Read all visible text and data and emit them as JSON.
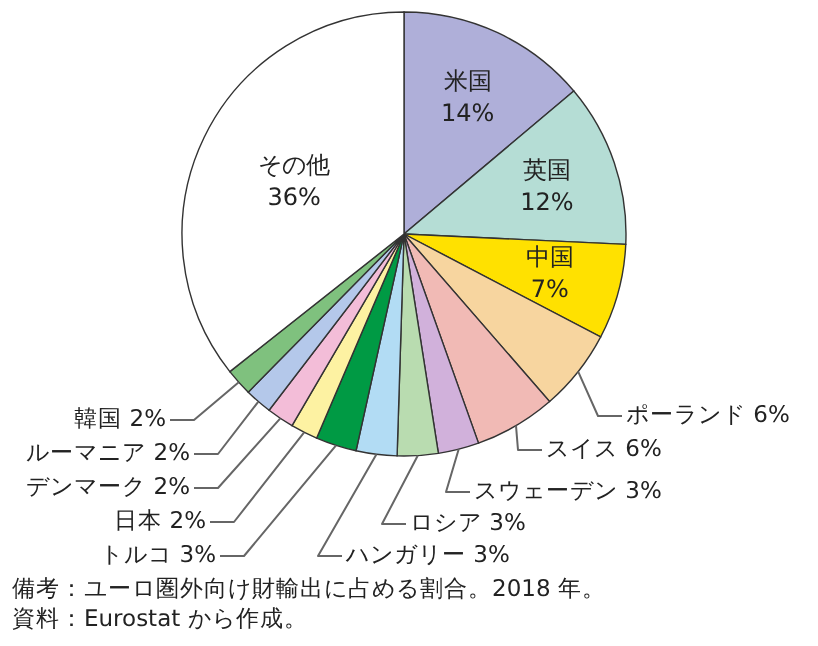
{
  "chart_data": {
    "type": "pie",
    "categories": [
      "米国",
      "英国",
      "中国",
      "ポーランド",
      "スイス",
      "スウェーデン",
      "ロシア",
      "ハンガリー",
      "トルコ",
      "日本",
      "デンマーク",
      "ルーマニア",
      "韓国",
      "その他"
    ],
    "values": [
      14,
      12,
      7,
      6,
      6,
      3,
      3,
      3,
      3,
      2,
      2,
      2,
      2,
      36
    ],
    "value_labels": [
      "14%",
      "12%",
      "7%",
      "6%",
      "6%",
      "3%",
      "3%",
      "3%",
      "3%",
      "2%",
      "2%",
      "2%",
      "2%",
      "36%"
    ],
    "colors": [
      "#afafd9",
      "#b5ddd5",
      "#ffe100",
      "#f7d59f",
      "#f1bab5",
      "#d1b1db",
      "#b9dcb0",
      "#b2dcf4",
      "#009a44",
      "#fdf2a2",
      "#f3bdd8",
      "#b4c8ea",
      "#7fc17e",
      "#ffffff"
    ],
    "annotations": [
      "備考：ユーロ圏外向け財輸出に占める割合。2018 年。",
      "資料：Eurostat から作成。"
    ]
  }
}
